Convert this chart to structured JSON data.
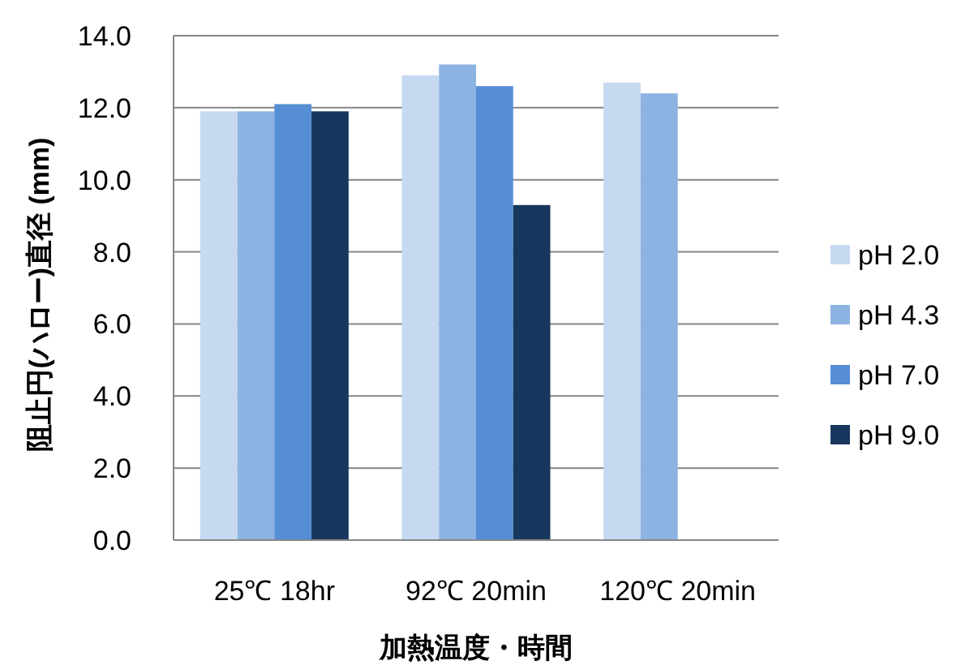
{
  "chart_data": {
    "type": "bar",
    "xlabel": "加熱温度・時間",
    "ylabel": "阻止円(ハロー)直径 (mm)",
    "categories": [
      "25℃ 18hr",
      "92℃ 20min",
      "120℃ 20min"
    ],
    "series": [
      {
        "name": "pH 2.0",
        "color": "#c6d9f1",
        "values": [
          11.9,
          12.9,
          12.7
        ]
      },
      {
        "name": "pH 4.3",
        "color": "#8db3e2",
        "values": [
          11.9,
          13.2,
          12.4
        ]
      },
      {
        "name": "pH 7.0",
        "color": "#558ed5",
        "values": [
          12.1,
          12.6,
          null
        ]
      },
      {
        "name": "pH 9.0",
        "color": "#17375e",
        "values": [
          11.9,
          9.3,
          null
        ]
      }
    ],
    "ylim": [
      0,
      14
    ],
    "yticks": [
      {
        "value": 0,
        "label": "0.0"
      },
      {
        "value": 2,
        "label": "2.0"
      },
      {
        "value": 4,
        "label": "4.0"
      },
      {
        "value": 6,
        "label": "6.0"
      },
      {
        "value": 8,
        "label": "8.0"
      },
      {
        "value": 10,
        "label": "10.0"
      },
      {
        "value": 12,
        "label": "12.0"
      },
      {
        "value": 14,
        "label": "14.0"
      }
    ],
    "grid": "y",
    "legend": "right"
  }
}
